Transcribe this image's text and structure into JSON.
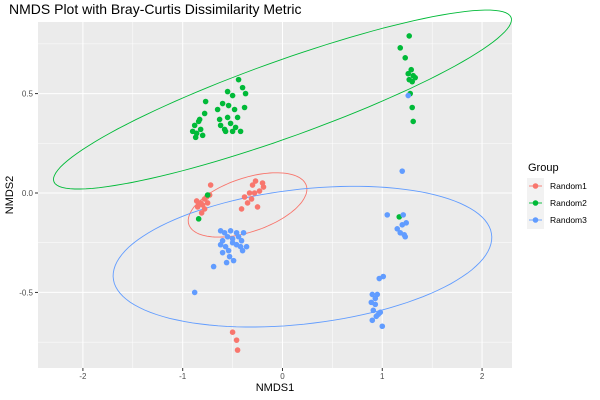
{
  "chart_data": {
    "type": "scatter",
    "title": "NMDS Plot with Bray-Curtis Dissimilarity Metric",
    "xlabel": "NMDS1",
    "ylabel": "NMDS2",
    "xlim": [
      -2.45,
      2.3
    ],
    "ylim": [
      -0.88,
      0.86
    ],
    "x_ticks": [
      -2,
      -1,
      0,
      1,
      2
    ],
    "x_tick_labels": [
      "-2",
      "-1",
      "0",
      "1",
      "2"
    ],
    "y_ticks": [
      -0.5,
      0.0,
      0.5
    ],
    "y_tick_labels": [
      "-0.5",
      "0.0",
      "0.5"
    ],
    "grid": true,
    "legend": {
      "title": "Group",
      "position": "right",
      "entries": [
        "Random1",
        "Random2",
        "Random3"
      ]
    },
    "colors": {
      "Random1": "#F8766D",
      "Random2": "#00BA38",
      "Random3": "#619CFF",
      "panel_background": "#EBEBEB",
      "grid": "#FFFFFF"
    },
    "series": [
      {
        "name": "Random1",
        "ellipse": {
          "cx": -0.35,
          "cy": -0.06,
          "rx": 0.6,
          "ry": 0.14,
          "angle_deg": 8
        },
        "points": [
          [
            -0.78,
            -0.03
          ],
          [
            -0.82,
            -0.05
          ],
          [
            -0.85,
            -0.07
          ],
          [
            -0.86,
            -0.04
          ],
          [
            -0.76,
            -0.02
          ],
          [
            -0.73,
            -0.01
          ],
          [
            -0.72,
            0.04
          ],
          [
            -0.8,
            -0.06
          ],
          [
            -0.78,
            -0.08
          ],
          [
            -0.81,
            -0.1
          ],
          [
            -0.84,
            -0.06
          ],
          [
            -0.75,
            -0.05
          ],
          [
            -0.3,
            0.04
          ],
          [
            -0.27,
            0.06
          ],
          [
            -0.33,
            0.0
          ],
          [
            -0.38,
            -0.02
          ],
          [
            -0.28,
            0.0
          ],
          [
            -0.23,
            0.01
          ],
          [
            -0.19,
            0.03
          ],
          [
            -0.35,
            -0.05
          ],
          [
            -0.25,
            -0.07
          ],
          [
            -0.41,
            -0.08
          ],
          [
            -0.2,
            0.05
          ],
          [
            -0.31,
            -0.03
          ],
          [
            -0.5,
            -0.7
          ],
          [
            -0.46,
            -0.74
          ],
          [
            -0.45,
            -0.79
          ]
        ]
      },
      {
        "name": "Random2",
        "ellipse": {
          "cx": -0.0,
          "cy": 0.47,
          "rx": 2.33,
          "ry": 0.2,
          "angle_deg": 10
        },
        "points": [
          [
            -0.88,
            0.34
          ],
          [
            -0.9,
            0.31
          ],
          [
            -0.86,
            0.3
          ],
          [
            -0.82,
            0.32
          ],
          [
            -0.84,
            0.36
          ],
          [
            -0.87,
            0.28
          ],
          [
            -0.8,
            0.29
          ],
          [
            -0.83,
            0.37
          ],
          [
            -0.78,
            0.4
          ],
          [
            -0.77,
            0.46
          ],
          [
            -0.6,
            0.45
          ],
          [
            -0.55,
            0.38
          ],
          [
            -0.58,
            0.32
          ],
          [
            -0.52,
            0.35
          ],
          [
            -0.5,
            0.31
          ],
          [
            -0.47,
            0.33
          ],
          [
            -0.45,
            0.38
          ],
          [
            -0.54,
            0.44
          ],
          [
            -0.48,
            0.42
          ],
          [
            -0.42,
            0.31
          ],
          [
            -0.62,
            0.34
          ],
          [
            -0.65,
            0.42
          ],
          [
            -0.4,
            0.53
          ],
          [
            -0.44,
            0.57
          ],
          [
            -0.37,
            0.5
          ],
          [
            -0.5,
            0.49
          ],
          [
            -0.38,
            0.43
          ],
          [
            -0.57,
            0.31
          ],
          [
            -0.63,
            0.37
          ],
          [
            -0.55,
            0.51
          ],
          [
            1.18,
            0.73
          ],
          [
            1.27,
            0.79
          ],
          [
            1.23,
            0.68
          ],
          [
            1.26,
            0.6
          ],
          [
            1.29,
            0.62
          ],
          [
            1.31,
            0.59
          ],
          [
            1.27,
            0.57
          ],
          [
            1.3,
            0.56
          ],
          [
            1.33,
            0.58
          ],
          [
            1.28,
            0.5
          ],
          [
            1.3,
            0.43
          ],
          [
            1.31,
            0.36
          ],
          [
            -0.84,
            -0.13
          ],
          [
            -0.75,
            -0.01
          ],
          [
            1.17,
            -0.12
          ]
        ]
      },
      {
        "name": "Random3",
        "ellipse": {
          "cx": 0.2,
          "cy": -0.32,
          "rx": 1.9,
          "ry": 0.34,
          "angle_deg": 3
        },
        "points": [
          [
            -0.62,
            -0.19
          ],
          [
            -0.58,
            -0.2
          ],
          [
            -0.55,
            -0.22
          ],
          [
            -0.6,
            -0.24
          ],
          [
            -0.52,
            -0.19
          ],
          [
            -0.5,
            -0.23
          ],
          [
            -0.46,
            -0.2
          ],
          [
            -0.44,
            -0.22
          ],
          [
            -0.41,
            -0.24
          ],
          [
            -0.39,
            -0.2
          ],
          [
            -0.62,
            -0.26
          ],
          [
            -0.57,
            -0.27
          ],
          [
            -0.54,
            -0.29
          ],
          [
            -0.5,
            -0.25
          ],
          [
            -0.46,
            -0.26
          ],
          [
            -0.42,
            -0.27
          ],
          [
            -0.4,
            -0.29
          ],
          [
            -0.36,
            -0.27
          ],
          [
            -0.6,
            -0.3
          ],
          [
            -0.53,
            -0.32
          ],
          [
            -0.49,
            -0.34
          ],
          [
            -0.56,
            -0.35
          ],
          [
            -0.69,
            -0.37
          ],
          [
            -0.88,
            -0.5
          ],
          [
            1.2,
            -0.16
          ],
          [
            1.18,
            -0.2
          ],
          [
            1.22,
            -0.21
          ],
          [
            1.15,
            -0.18
          ],
          [
            1.24,
            -0.15
          ],
          [
            1.21,
            -0.11
          ],
          [
            1.2,
            0.11
          ],
          [
            1.26,
            0.49
          ],
          [
            1.05,
            -0.11
          ],
          [
            1.23,
            -0.22
          ],
          [
            1.01,
            -0.42
          ],
          [
            0.97,
            -0.43
          ],
          [
            0.9,
            -0.51
          ],
          [
            0.93,
            -0.53
          ],
          [
            0.95,
            -0.51
          ],
          [
            0.89,
            -0.55
          ],
          [
            0.93,
            -0.56
          ],
          [
            0.91,
            -0.59
          ],
          [
            0.96,
            -0.61
          ],
          [
            0.94,
            -0.62
          ],
          [
            0.9,
            -0.64
          ],
          [
            0.98,
            -0.6
          ],
          [
            1.0,
            -0.67
          ]
        ]
      }
    ]
  }
}
